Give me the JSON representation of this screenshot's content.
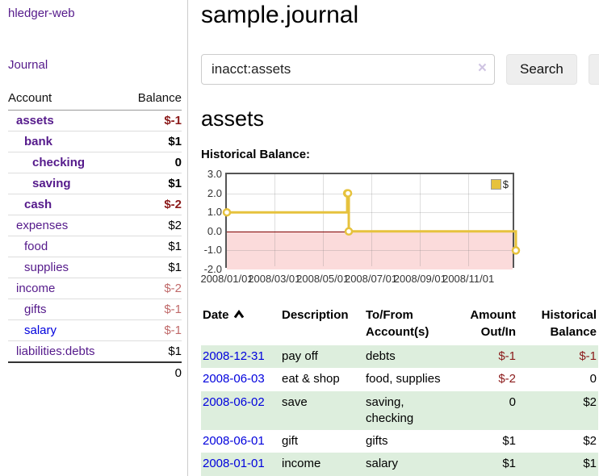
{
  "colors": {
    "link_purple": "#551a8b",
    "link_blue": "#0000dd",
    "negative_red": "#8b1a1a",
    "muted_rose": "#c06a6a",
    "row_green": "#ddeedd",
    "series_gold": "#e6c23d",
    "negative_region_pink": "#fbdbdb",
    "zero_line_maroon": "#7f0000"
  },
  "sidebar": {
    "brand": "hledger-web",
    "journal_link": "Journal",
    "accounts": {
      "headers": [
        "Account",
        "Balance"
      ],
      "rows": [
        {
          "label": "assets",
          "depth": 1,
          "bold": true,
          "link": "purple",
          "balance": "$-1",
          "negative": true,
          "muted": false
        },
        {
          "label": "bank",
          "depth": 2,
          "bold": true,
          "link": "purple",
          "balance": "$1",
          "negative": false,
          "muted": false
        },
        {
          "label": "checking",
          "depth": 3,
          "bold": true,
          "link": "purple",
          "balance": "0",
          "negative": false,
          "muted": false
        },
        {
          "label": "saving",
          "depth": 3,
          "bold": true,
          "link": "purple",
          "balance": "$1",
          "negative": false,
          "muted": false
        },
        {
          "label": "cash",
          "depth": 2,
          "bold": true,
          "link": "purple",
          "balance": "$-2",
          "negative": true,
          "muted": false
        },
        {
          "label": "expenses",
          "depth": 1,
          "bold": false,
          "link": "purple",
          "balance": "$2",
          "negative": false,
          "muted": false
        },
        {
          "label": "food",
          "depth": 2,
          "bold": false,
          "link": "purple",
          "balance": "$1",
          "negative": false,
          "muted": false
        },
        {
          "label": "supplies",
          "depth": 2,
          "bold": false,
          "link": "purple",
          "balance": "$1",
          "negative": false,
          "muted": false
        },
        {
          "label": "income",
          "depth": 1,
          "bold": false,
          "link": "purple",
          "balance": "$-2",
          "negative": false,
          "muted": true
        },
        {
          "label": "gifts",
          "depth": 2,
          "bold": false,
          "link": "purple",
          "balance": "$-1",
          "negative": false,
          "muted": true
        },
        {
          "label": "salary",
          "depth": 2,
          "bold": false,
          "link": "blue",
          "balance": "$-1",
          "negative": false,
          "muted": true
        },
        {
          "label": "liabilities:debts",
          "depth": 1,
          "bold": false,
          "link": "purple",
          "balance": "$1",
          "negative": false,
          "muted": false
        }
      ],
      "total": "0"
    }
  },
  "main": {
    "title": "sample.journal",
    "search": {
      "value": "inacct:assets",
      "clear_icon": "×",
      "search_button": "Search",
      "help_button": "?"
    },
    "account_heading": "assets",
    "chart_title": "Historical Balance:"
  },
  "chart_data": {
    "type": "line",
    "step": true,
    "title": "Historical Balance",
    "series": [
      {
        "name": "$",
        "color": "#e6c23d",
        "points": [
          [
            "2008-01-01",
            1
          ],
          [
            "2008-06-01",
            2
          ],
          [
            "2008-06-02",
            2
          ],
          [
            "2008-06-03",
            0
          ],
          [
            "2008-12-31",
            -1
          ]
        ]
      }
    ],
    "ylim": [
      -2,
      3
    ],
    "yticks": [
      {
        "value": 3,
        "label": "3.0"
      },
      {
        "value": 2,
        "label": "2.0"
      },
      {
        "value": 1,
        "label": "1.0"
      },
      {
        "value": 0,
        "label": "0.0"
      },
      {
        "value": -1,
        "label": "-1.0"
      },
      {
        "value": -2,
        "label": "-2.0"
      }
    ],
    "xticks": [
      {
        "date": "2008-01-01",
        "label": "2008/01/01"
      },
      {
        "date": "2008-03-01",
        "label": "2008/03/01"
      },
      {
        "date": "2008-05-01",
        "label": "2008/05/01"
      },
      {
        "date": "2008-07-01",
        "label": "2008/07/01"
      },
      {
        "date": "2008-09-01",
        "label": "2008/09/01"
      },
      {
        "date": "2008-11-01",
        "label": "2008/11/01"
      }
    ],
    "legend": {
      "label": "$",
      "position": "top-right"
    },
    "grid": true,
    "negative_region": true,
    "zero_line": true
  },
  "register": {
    "headers": [
      {
        "line1": "Date",
        "line2": "",
        "align": "left",
        "sorted_asc": true
      },
      {
        "line1": "Description",
        "line2": "",
        "align": "left",
        "sorted_asc": false
      },
      {
        "line1": "To/From",
        "line2": "Account(s)",
        "align": "left",
        "sorted_asc": false
      },
      {
        "line1": "Amount",
        "line2": "Out/In",
        "align": "right",
        "sorted_asc": false
      },
      {
        "line1": "Historical",
        "line2": "Balance",
        "align": "right",
        "sorted_asc": false
      }
    ],
    "rows": [
      {
        "date": "2008-12-31",
        "description": "pay off",
        "accounts": "debts",
        "amount": "$-1",
        "amount_negative": true,
        "balance": "$-1",
        "balance_negative": true,
        "shaded": true
      },
      {
        "date": "2008-06-03",
        "description": "eat & shop",
        "accounts": "food, supplies",
        "amount": "$-2",
        "amount_negative": true,
        "balance": "0",
        "balance_negative": false,
        "shaded": false
      },
      {
        "date": "2008-06-02",
        "description": "save",
        "accounts": "saving, checking",
        "amount": "0",
        "amount_negative": false,
        "balance": "$2",
        "balance_negative": false,
        "shaded": true
      },
      {
        "date": "2008-06-01",
        "description": "gift",
        "accounts": "gifts",
        "amount": "$1",
        "amount_negative": false,
        "balance": "$2",
        "balance_negative": false,
        "shaded": false
      },
      {
        "date": "2008-01-01",
        "description": "income",
        "accounts": "salary",
        "amount": "$1",
        "amount_negative": false,
        "balance": "$1",
        "balance_negative": false,
        "shaded": true
      }
    ]
  }
}
